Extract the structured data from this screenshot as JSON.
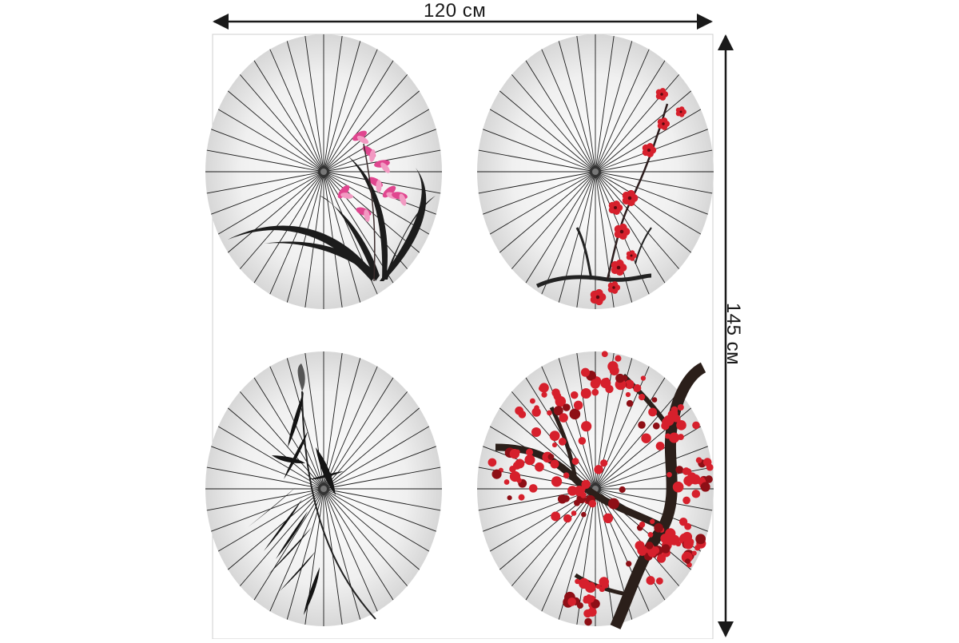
{
  "dimensions": {
    "width_label": "120 см",
    "height_label": "145 см"
  },
  "panels": [
    {
      "motif": "orchid",
      "motif_color": "#e0468f"
    },
    {
      "motif": "plum-blossom-branch",
      "motif_color": "#d6202c"
    },
    {
      "motif": "bamboo",
      "motif_color": "#111111"
    },
    {
      "motif": "cherry-blossom-tree",
      "motif_color": "#d6202c"
    }
  ],
  "colors": {
    "ink": "#1a1a1a",
    "umbrella_fill": "#f2f2f2",
    "umbrella_shade": "#d9d9d9",
    "frame": "#cccccc"
  }
}
